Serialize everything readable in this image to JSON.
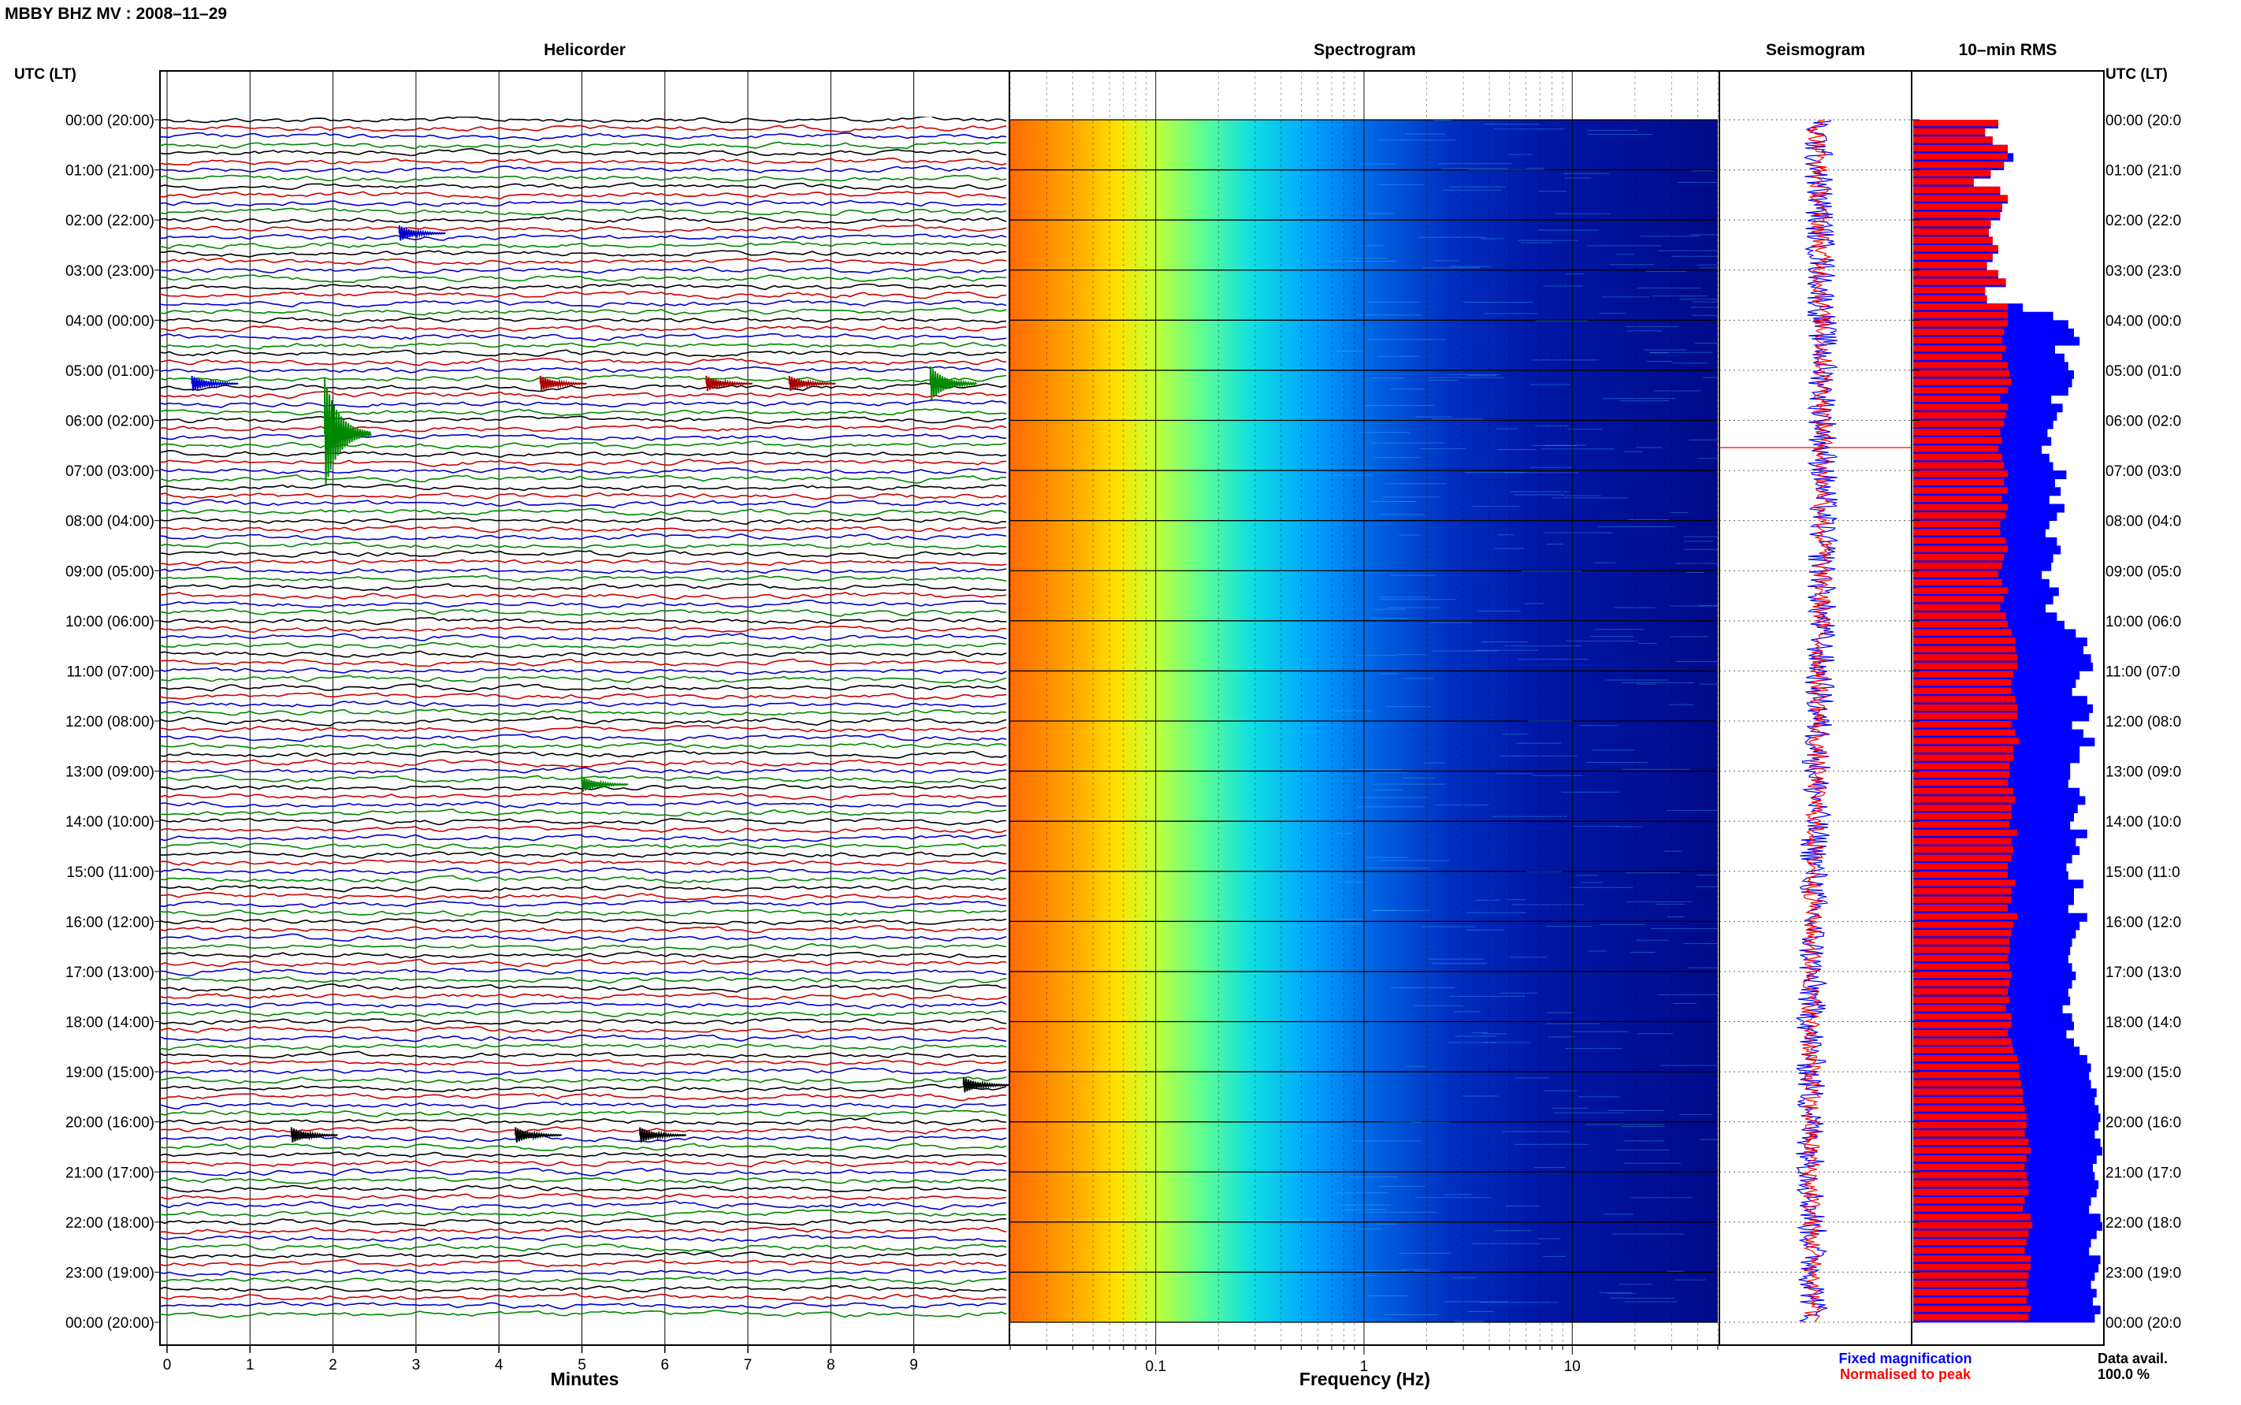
{
  "page_title": "MBBY BHZ MV : 2008–11–29",
  "row_axis_label": "UTC (LT)",
  "right_axis_label": "UTC (LT)",
  "hour_labels": [
    "00:00 (20:00)",
    "01:00 (21:00)",
    "02:00 (22:00)",
    "03:00 (23:00)",
    "04:00 (00:00)",
    "05:00 (01:00)",
    "06:00 (02:00)",
    "07:00 (03:00)",
    "08:00 (04:00)",
    "09:00 (05:00)",
    "10:00 (06:00)",
    "11:00 (07:00)",
    "12:00 (08:00)",
    "13:00 (09:00)",
    "14:00 (10:00)",
    "15:00 (11:00)",
    "16:00 (12:00)",
    "17:00 (13:00)",
    "18:00 (14:00)",
    "19:00 (15:00)",
    "20:00 (16:00)",
    "21:00 (17:00)",
    "22:00 (18:00)",
    "23:00 (19:00)",
    "00:00 (20:00)"
  ],
  "right_hour_labels": [
    "00:00 (20:0",
    "01:00 (21:0",
    "02:00 (22:0",
    "03:00 (23:0",
    "04:00 (00:0",
    "05:00 (01:0",
    "06:00 (02:0",
    "07:00 (03:0",
    "08:00 (04:0",
    "09:00 (05:0",
    "10:00 (06:0",
    "11:00 (07:0",
    "12:00 (08:0",
    "13:00 (09:0",
    "14:00 (10:0",
    "15:00 (11:0",
    "16:00 (12:0",
    "17:00 (13:0",
    "18:00 (14:0",
    "19:00 (15:0",
    "20:00 (16:0",
    "21:00 (17:0",
    "22:00 (18:0",
    "23:00 (19:0",
    "00:00 (20:0"
  ],
  "colors": {
    "trace_cycle": [
      "#000000",
      "#cc0000",
      "#0000cc",
      "#008800"
    ],
    "fixed": "#0000ff",
    "normalised": "#ff0000",
    "spec_background": "#00008b"
  },
  "chart_data": [
    {
      "type": "line",
      "title": "Helicorder",
      "xlabel": "Minutes",
      "xticks": [
        "0",
        "1",
        "2",
        "3",
        "4",
        "5",
        "6",
        "7",
        "8",
        "9"
      ],
      "xlim": [
        0,
        10
      ],
      "traces_per_hour": 6,
      "hours": 24,
      "events": [
        {
          "hour": 2,
          "minute": 2.8,
          "label_color": "blue",
          "amplitude": "small"
        },
        {
          "hour": 5,
          "minute": 0.3,
          "label_color": "blue",
          "amplitude": "small"
        },
        {
          "hour": 5,
          "minute": 4.5,
          "label_color": "red",
          "amplitude": "small"
        },
        {
          "hour": 5,
          "minute": 6.5,
          "label_color": "red",
          "amplitude": "small"
        },
        {
          "hour": 5,
          "minute": 7.5,
          "label_color": "red",
          "amplitude": "small"
        },
        {
          "hour": 6,
          "minute": 1.9,
          "label_color": "green",
          "amplitude": "large"
        },
        {
          "hour": 5,
          "minute": 9.2,
          "label_color": "green",
          "amplitude": "medium"
        },
        {
          "hour": 13,
          "minute": 5.0,
          "label_color": "green",
          "amplitude": "small"
        },
        {
          "hour": 19,
          "minute": 9.6,
          "label_color": "black",
          "amplitude": "small"
        },
        {
          "hour": 20,
          "minute": 1.5,
          "label_color": "black",
          "amplitude": "small"
        },
        {
          "hour": 20,
          "minute": 4.2,
          "label_color": "black",
          "amplitude": "small"
        },
        {
          "hour": 20,
          "minute": 5.7,
          "label_color": "black",
          "amplitude": "small"
        }
      ]
    },
    {
      "type": "heatmap",
      "title": "Spectrogram",
      "xlabel": "Frequency (Hz)",
      "xscale": "log",
      "xlim": [
        0.02,
        50
      ],
      "xticks": [
        "0.1",
        "1",
        "10"
      ],
      "colormap": "jet",
      "description_of_levels": "high power at low frequency (red/orange below 0.1 Hz), decreasing to blue above ~3 Hz"
    },
    {
      "type": "line",
      "title": "Seismogram",
      "series": [
        {
          "name": "Fixed magnification",
          "color": "#0000ff"
        },
        {
          "name": "Normalised to peak",
          "color": "#ff0000"
        }
      ]
    },
    {
      "type": "bar",
      "title": "10–min RMS",
      "orientation": "horizontal",
      "bars_per_hour": 6,
      "series": [
        {
          "name": "Fixed magnification",
          "color": "#0000ff",
          "values": [
            0.45,
            0.38,
            0.42,
            0.5,
            0.53,
            0.48,
            0.41,
            0.32,
            0.46,
            0.5,
            0.47,
            0.46,
            0.41,
            0.4,
            0.42,
            0.45,
            0.42,
            0.39,
            0.45,
            0.49,
            0.38,
            0.39,
            0.58,
            0.74,
            0.82,
            0.85,
            0.88,
            0.75,
            0.8,
            0.82,
            0.85,
            0.84,
            0.82,
            0.73,
            0.79,
            0.76,
            0.74,
            0.71,
            0.73,
            0.68,
            0.72,
            0.74,
            0.81,
            0.75,
            0.78,
            0.72,
            0.8,
            0.76,
            0.72,
            0.7,
            0.76,
            0.78,
            0.74,
            0.73,
            0.68,
            0.72,
            0.77,
            0.74,
            0.7,
            0.76,
            0.8,
            0.86,
            0.92,
            0.9,
            0.94,
            0.95,
            0.88,
            0.86,
            0.84,
            0.92,
            0.95,
            0.93,
            0.84,
            0.9,
            0.96,
            0.88,
            0.88,
            0.83,
            0.83,
            0.82,
            0.88,
            0.91,
            0.87,
            0.85,
            0.83,
            0.92,
            0.86,
            0.88,
            0.84,
            0.81,
            0.82,
            0.9,
            0.85,
            0.85,
            0.82,
            0.92,
            0.88,
            0.86,
            0.84,
            0.83,
            0.82,
            0.84,
            0.86,
            0.84,
            0.82,
            0.83,
            0.79,
            0.84,
            0.85,
            0.81,
            0.85,
            0.88,
            0.92,
            0.94,
            0.93,
            0.94,
            0.97,
            0.96,
            0.98,
            0.99,
            0.98,
            0.96,
            0.99,
            1.0,
            0.97,
            0.95,
            0.96,
            0.98,
            0.97,
            0.94,
            0.93,
            0.99,
            1.0,
            0.97,
            0.94,
            0.93,
            0.99,
            0.98,
            0.96,
            0.94,
            0.97,
            0.95,
            0.99,
            0.96
          ]
        },
        {
          "name": "Normalised to peak",
          "color": "#ff0000",
          "values": [
            0.45,
            0.38,
            0.42,
            0.5,
            0.5,
            0.48,
            0.41,
            0.32,
            0.46,
            0.5,
            0.47,
            0.46,
            0.41,
            0.4,
            0.42,
            0.45,
            0.42,
            0.39,
            0.45,
            0.49,
            0.38,
            0.39,
            0.5,
            0.5,
            0.5,
            0.48,
            0.47,
            0.49,
            0.47,
            0.5,
            0.51,
            0.52,
            0.5,
            0.46,
            0.5,
            0.49,
            0.48,
            0.46,
            0.47,
            0.45,
            0.47,
            0.48,
            0.5,
            0.48,
            0.5,
            0.47,
            0.5,
            0.49,
            0.46,
            0.46,
            0.49,
            0.5,
            0.48,
            0.47,
            0.45,
            0.47,
            0.5,
            0.48,
            0.46,
            0.49,
            0.5,
            0.52,
            0.54,
            0.54,
            0.55,
            0.55,
            0.53,
            0.52,
            0.52,
            0.54,
            0.55,
            0.55,
            0.52,
            0.54,
            0.56,
            0.53,
            0.53,
            0.51,
            0.51,
            0.5,
            0.53,
            0.54,
            0.52,
            0.52,
            0.51,
            0.55,
            0.52,
            0.53,
            0.52,
            0.5,
            0.5,
            0.54,
            0.52,
            0.52,
            0.5,
            0.55,
            0.53,
            0.52,
            0.51,
            0.51,
            0.5,
            0.51,
            0.52,
            0.51,
            0.5,
            0.51,
            0.49,
            0.52,
            0.52,
            0.5,
            0.52,
            0.53,
            0.55,
            0.56,
            0.56,
            0.57,
            0.58,
            0.58,
            0.59,
            0.6,
            0.6,
            0.59,
            0.61,
            0.62,
            0.6,
            0.59,
            0.6,
            0.61,
            0.61,
            0.59,
            0.58,
            0.62,
            0.63,
            0.61,
            0.6,
            0.59,
            0.62,
            0.62,
            0.61,
            0.6,
            0.61,
            0.6,
            0.62,
            0.61
          ]
        }
      ]
    }
  ],
  "legend": {
    "fixed_label": "Fixed magnification",
    "normalised_label": "Normalised to peak",
    "data_avail_label": "Data avail.",
    "data_avail_value": "100.0 %"
  }
}
